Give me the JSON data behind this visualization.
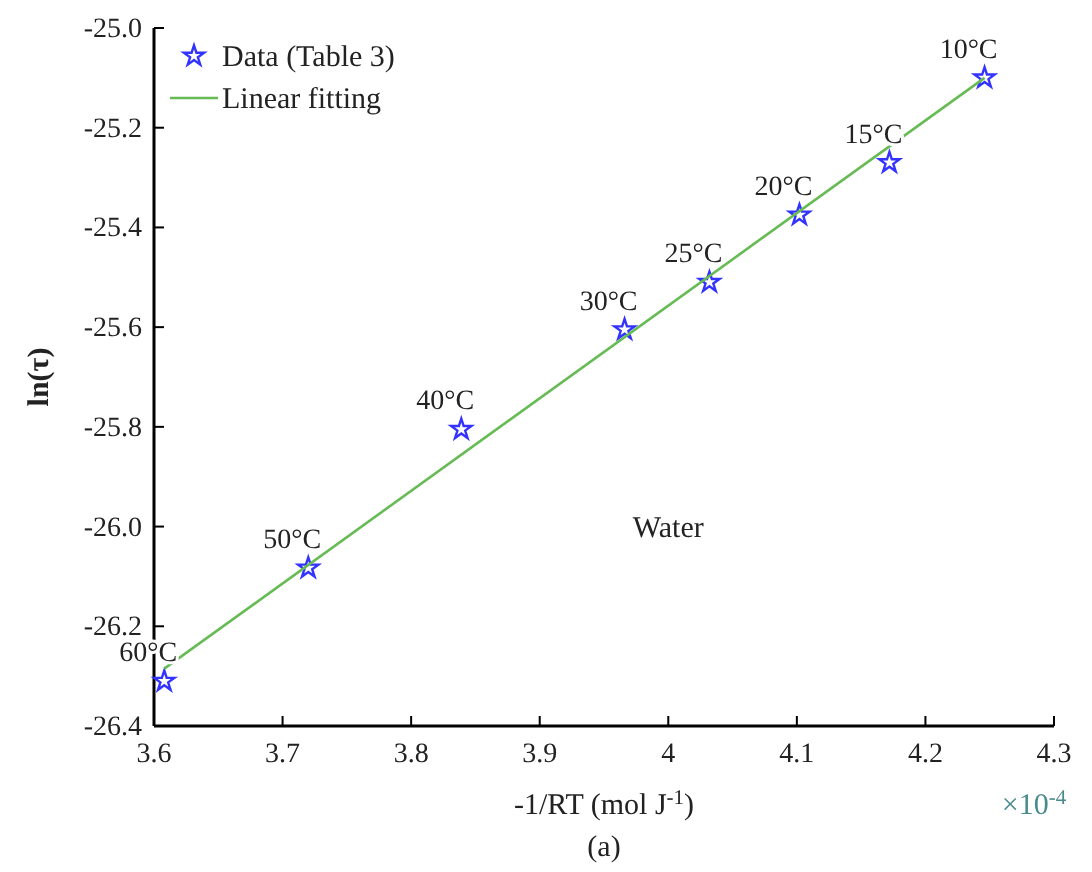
{
  "chart_data": {
    "type": "scatter",
    "xlabel": "-1/RT (mol J$^{-1}$)",
    "ylabel": "ln(τ)",
    "xlim": [
      3.6,
      4.3
    ],
    "xticks": [
      3.6,
      3.7,
      3.8,
      3.9,
      4,
      4.1,
      4.2,
      4.3
    ],
    "ylim": [
      -26.4,
      -25.0
    ],
    "yticks": [
      -26.4,
      -26.2,
      {
        "value": -26,
        "label": "-26.0"
      },
      -25.8,
      -25.6,
      -25.4,
      -25.2,
      {
        "value": -25,
        "label": "-25.0"
      }
    ],
    "grid": false,
    "legend": "top left",
    "series": [
      {
        "name": "Data (Table 3)",
        "marker": "star",
        "color": "#3333ff",
        "x": [
          4.246,
          4.172,
          4.102,
          4.032,
          3.966,
          3.839,
          3.72,
          3.608
        ],
        "values": [
          -25.1,
          -25.27,
          -25.375,
          -25.51,
          -25.605,
          -25.805,
          -26.083,
          -26.31
        ]
      },
      {
        "name": "Linear fitting",
        "type": "line",
        "color": "#66bb55",
        "line_style": "solid",
        "x": [
          3.608,
          4.246
        ],
        "values": [
          -26.285,
          -25.1
        ]
      }
    ],
    "annotations": [
      {
        "text": "10°C",
        "x": 4.246,
        "y": -25.1
      },
      {
        "text": "15°C",
        "x": 4.172,
        "y": -25.27
      },
      {
        "text": "20°C",
        "x": 4.102,
        "y": -25.375
      },
      {
        "text": "25°C",
        "x": 4.032,
        "y": -25.51
      },
      {
        "text": "30°C",
        "x": 3.966,
        "y": -25.605
      },
      {
        "text": "40°C",
        "x": 3.839,
        "y": -25.805
      },
      {
        "text": "50°C",
        "x": 3.72,
        "y": -26.083
      },
      {
        "text": "60°C",
        "x": 3.608,
        "y": -26.31
      },
      "Water",
      "×10$^{-4}$",
      "(a)"
    ]
  }
}
